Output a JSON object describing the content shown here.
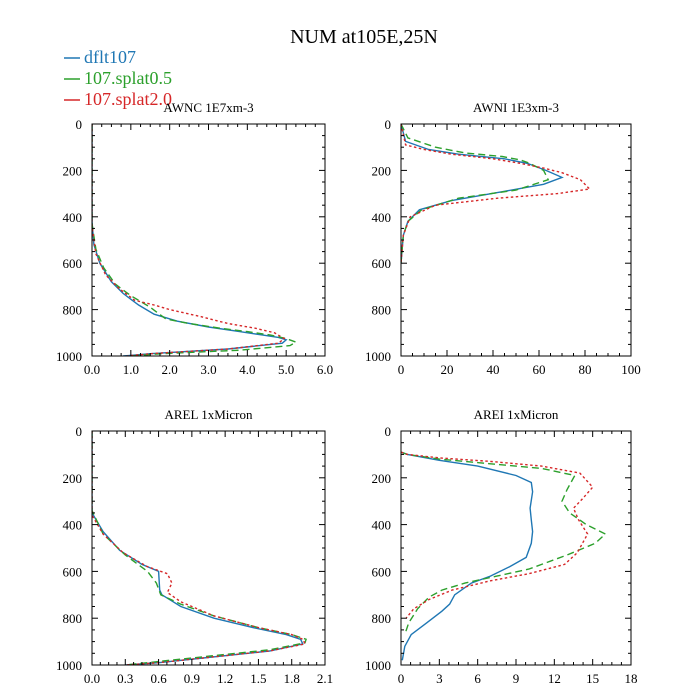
{
  "figure_title": "NUM at105E,25N",
  "legend": [
    {
      "label": "dflt107",
      "color": "#1f77b4",
      "dash": "solid"
    },
    {
      "label": "107.splat0.5",
      "color": "#2ca02c",
      "dash": "dashed"
    },
    {
      "label": "107.splat2.0",
      "color": "#d62728",
      "dash": "dotted"
    }
  ],
  "chart_data": [
    {
      "type": "line",
      "title": "AWNC  1E7xm-3",
      "xlim": [
        0,
        6
      ],
      "ylim": [
        1000,
        0
      ],
      "xticks": [
        "0.0",
        "1.0",
        "2.0",
        "3.0",
        "4.0",
        "5.0",
        "6.0"
      ],
      "yticks": [
        "0",
        "200",
        "400",
        "600",
        "800",
        "1000"
      ],
      "series": [
        {
          "name": "dflt107",
          "x": [
            0,
            0,
            0.05,
            0.2,
            0.5,
            0.8,
            1.2,
            1.6,
            2.2,
            3.0,
            3.8,
            4.4,
            4.8,
            5.0,
            4.9,
            3.5,
            1.5,
            0.8
          ],
          "y": [
            0,
            420,
            520,
            600,
            680,
            730,
            780,
            820,
            850,
            875,
            895,
            910,
            920,
            930,
            945,
            970,
            990,
            1000
          ]
        },
        {
          "name": "107.splat0.5",
          "x": [
            0,
            0,
            0.1,
            0.3,
            0.6,
            1.0,
            1.5,
            1.9,
            2.5,
            3.3,
            4.0,
            4.6,
            5.0,
            5.25,
            5.1,
            3.8,
            1.8,
            1.0
          ],
          "y": [
            0,
            430,
            540,
            620,
            690,
            740,
            790,
            840,
            860,
            880,
            895,
            910,
            925,
            940,
            955,
            975,
            990,
            1000
          ]
        },
        {
          "name": "107.splat2.0",
          "x": [
            0,
            0,
            0.1,
            0.35,
            0.7,
            1.1,
            1.6,
            2.0,
            2.8,
            3.5,
            4.2,
            4.7,
            4.95,
            4.8,
            3.5,
            1.5,
            0.9
          ],
          "y": [
            0,
            440,
            560,
            650,
            710,
            760,
            780,
            800,
            830,
            860,
            880,
            900,
            925,
            945,
            970,
            990,
            1000
          ]
        }
      ]
    },
    {
      "type": "line",
      "title": "AWNI  1E3xm-3",
      "xlim": [
        0,
        100
      ],
      "ylim": [
        1000,
        0
      ],
      "xticks": [
        "0",
        "20",
        "40",
        "60",
        "80",
        "100"
      ],
      "yticks": [
        "0",
        "200",
        "400",
        "600",
        "800",
        "1000"
      ],
      "series": [
        {
          "name": "dflt107",
          "x": [
            0,
            2,
            12,
            25,
            45,
            55,
            63,
            70,
            62,
            45,
            22,
            8,
            3,
            1,
            0
          ],
          "y": [
            0,
            75,
            110,
            130,
            150,
            170,
            200,
            230,
            260,
            290,
            330,
            370,
            420,
            480,
            600
          ]
        },
        {
          "name": "107.splat0.5",
          "x": [
            0,
            3,
            15,
            28,
            44,
            52,
            56,
            62,
            64,
            50,
            25,
            9,
            3,
            1,
            0
          ],
          "y": [
            0,
            60,
            100,
            125,
            140,
            155,
            170,
            200,
            240,
            285,
            320,
            370,
            420,
            480,
            600
          ]
        },
        {
          "name": "107.splat2.0",
          "x": [
            0,
            2,
            10,
            22,
            40,
            52,
            62,
            70,
            78,
            82,
            68,
            42,
            15,
            4,
            1,
            0
          ],
          "y": [
            0,
            90,
            110,
            130,
            150,
            170,
            190,
            210,
            240,
            280,
            300,
            320,
            350,
            400,
            480,
            600
          ]
        }
      ]
    },
    {
      "type": "line",
      "title": "AREL  1xMicron",
      "xlim": [
        0,
        2.1
      ],
      "ylim": [
        1000,
        0
      ],
      "xticks": [
        "0.0",
        "0.3",
        "0.6",
        "0.9",
        "1.2",
        "1.5",
        "1.8",
        "2.1"
      ],
      "yticks": [
        "0",
        "200",
        "400",
        "600",
        "800",
        "1000"
      ],
      "series": [
        {
          "name": "dflt107",
          "x": [
            0,
            0,
            0.1,
            0.25,
            0.45,
            0.6,
            0.61,
            0.63,
            0.8,
            1.1,
            1.45,
            1.75,
            1.88,
            1.9,
            1.6,
            1.0,
            0.6,
            0.3
          ],
          "y": [
            0,
            350,
            430,
            510,
            570,
            600,
            680,
            700,
            750,
            800,
            840,
            870,
            890,
            910,
            940,
            970,
            990,
            1000
          ]
        },
        {
          "name": "107.splat0.5",
          "x": [
            0,
            0,
            0.1,
            0.3,
            0.5,
            0.58,
            0.62,
            0.8,
            1.1,
            1.5,
            1.8,
            1.93,
            1.92,
            1.6,
            1.0,
            0.6,
            0.3
          ],
          "y": [
            0,
            340,
            440,
            530,
            600,
            650,
            700,
            740,
            790,
            840,
            870,
            890,
            905,
            935,
            965,
            985,
            1000
          ]
        },
        {
          "name": "107.splat2.0",
          "x": [
            0,
            0,
            0.1,
            0.28,
            0.5,
            0.68,
            0.72,
            0.68,
            0.8,
            1.1,
            1.5,
            1.8,
            1.9,
            1.92,
            1.6,
            1.0,
            0.6,
            0.3
          ],
          "y": [
            0,
            360,
            440,
            520,
            580,
            610,
            650,
            690,
            730,
            790,
            840,
            870,
            890,
            910,
            940,
            970,
            990,
            1000
          ]
        }
      ]
    },
    {
      "type": "line",
      "title": "AREI  1xMicron",
      "xlim": [
        0,
        18
      ],
      "ylim": [
        1000,
        0
      ],
      "xticks": [
        "0",
        "3",
        "6",
        "9",
        "12",
        "15",
        "18"
      ],
      "yticks": [
        "0",
        "200",
        "400",
        "600",
        "800",
        "1000"
      ],
      "series": [
        {
          "name": "dflt107",
          "x": [
            0,
            0.5,
            3,
            6,
            9,
            10.2,
            10.3,
            10.1,
            10.2,
            10.3,
            10.2,
            9.8,
            8.5,
            7.0,
            5.5,
            4.2,
            3.8,
            3.2,
            2.0,
            0.8,
            0.3,
            0.1
          ],
          "y": [
            90,
            100,
            125,
            150,
            190,
            220,
            260,
            330,
            380,
            430,
            480,
            540,
            580,
            620,
            650,
            700,
            740,
            770,
            820,
            870,
            920,
            980
          ]
        },
        {
          "name": "107.splat0.5",
          "x": [
            0,
            0.5,
            3,
            7,
            11,
            13.6,
            13.0,
            12.6,
            13.2,
            14.5,
            16.0,
            15.2,
            13.0,
            10.0,
            7.5,
            5.0,
            3.2,
            2.2,
            1.3,
            0.6,
            0.3
          ],
          "y": [
            90,
            100,
            120,
            140,
            160,
            190,
            250,
            300,
            350,
            400,
            440,
            480,
            530,
            590,
            620,
            650,
            680,
            710,
            760,
            820,
            870
          ]
        },
        {
          "name": "107.splat2.0",
          "x": [
            0,
            0.5,
            3,
            7,
            11,
            14.0,
            15.0,
            14.2,
            13.5,
            13.9,
            14.6,
            13.8,
            12.8,
            10.0,
            7.0,
            4.0,
            2.2,
            1.0,
            0.4
          ],
          "y": [
            90,
            100,
            115,
            130,
            150,
            180,
            240,
            290,
            330,
            380,
            440,
            520,
            570,
            610,
            640,
            680,
            720,
            760,
            800
          ]
        }
      ]
    }
  ]
}
